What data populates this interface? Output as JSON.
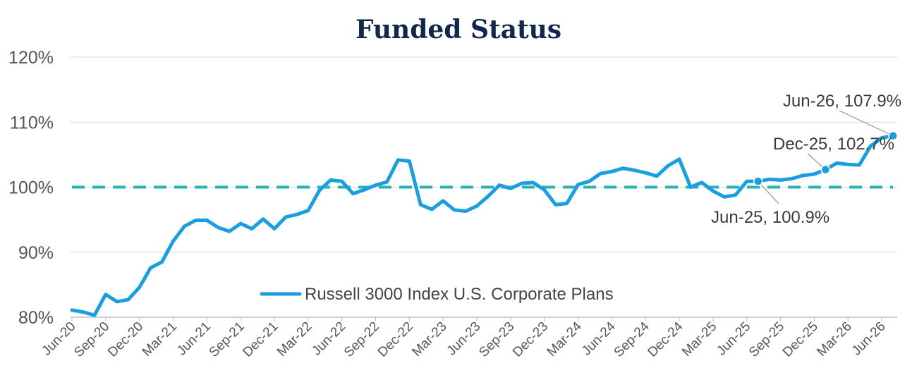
{
  "chart_data": {
    "type": "line",
    "title": "Funded Status",
    "xlabel": "",
    "ylabel": "",
    "ylim": [
      80,
      120
    ],
    "y_ticks": [
      80,
      90,
      100,
      110,
      120
    ],
    "y_tick_labels": [
      "80%",
      "90%",
      "100%",
      "110%",
      "120%"
    ],
    "x_tick_labels": [
      "Jun-20",
      "Sep-20",
      "Dec-20",
      "Mar-21",
      "Jun-21",
      "Sep-21",
      "Dec-21",
      "Mar-22",
      "Jun-22",
      "Sep-22",
      "Dec-22",
      "Mar-23",
      "Jun-23",
      "Sep-23",
      "Dec-23",
      "Mar-24",
      "Jun-24",
      "Sep-24",
      "Dec-24",
      "Mar-25",
      "Jun-25",
      "Sep-25",
      "Dec-25",
      "Mar-26",
      "Jun-26"
    ],
    "grid": true,
    "legend_position": "bottom-center",
    "reference_line": {
      "value": 100,
      "color": "#2ab3b3",
      "style": "dashed"
    },
    "series": [
      {
        "name": "Russell 3000 Index U.S. Corporate Plans",
        "color": "#1b9ee0",
        "values": [
          81.1,
          80.8,
          80.3,
          83.5,
          82.4,
          82.7,
          84.6,
          87.6,
          88.5,
          91.7,
          94.0,
          94.9,
          94.9,
          93.8,
          93.2,
          94.4,
          93.6,
          95.1,
          93.6,
          95.4,
          95.8,
          96.4,
          99.5,
          101.1,
          100.9,
          99.0,
          99.6,
          100.3,
          100.8,
          104.2,
          104.0,
          97.3,
          96.6,
          97.9,
          96.5,
          96.3,
          97.1,
          98.6,
          100.3,
          99.8,
          100.6,
          100.7,
          99.6,
          97.3,
          97.5,
          100.4,
          100.9,
          102.1,
          102.4,
          102.9,
          102.6,
          102.2,
          101.7,
          103.3,
          104.3,
          100.0,
          100.7,
          99.4,
          98.5,
          98.8,
          100.9,
          100.9,
          101.2,
          101.1,
          101.3,
          101.8,
          102.0,
          102.7,
          103.7,
          103.5,
          103.4,
          106.3,
          107.6,
          107.9
        ]
      }
    ],
    "annotations": [
      {
        "label": "Jun-26, 107.9%",
        "index": 73,
        "value": 107.9
      },
      {
        "label": "Dec-25, 102.7%",
        "index": 67,
        "value": 102.7
      },
      {
        "label": "Jun-25, 100.9%",
        "index": 61,
        "value": 100.9
      }
    ]
  }
}
